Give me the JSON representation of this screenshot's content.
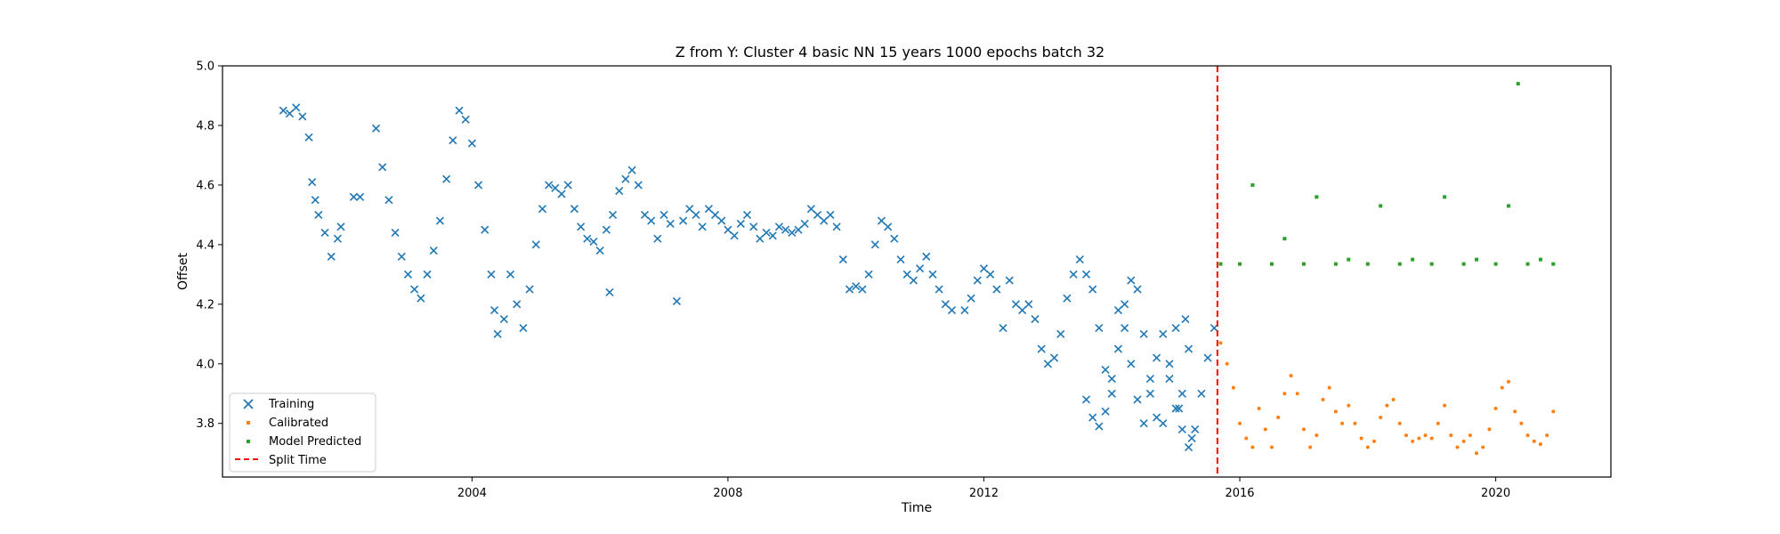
{
  "chart_data": {
    "type": "scatter",
    "title": "Z from Y: Cluster 4 basic NN 15 years 1000 epochs batch 32",
    "xlabel": "Time",
    "ylabel": "Offset",
    "xlim": [
      2000.1,
      2021.8
    ],
    "ylim": [
      3.62,
      5.0
    ],
    "xticks": [
      2004,
      2008,
      2012,
      2016,
      2020
    ],
    "xtick_labels": [
      "2004",
      "2008",
      "2012",
      "2016",
      "2020"
    ],
    "yticks": [
      3.8,
      4.0,
      4.2,
      4.4,
      4.6,
      4.8,
      5.0
    ],
    "ytick_labels": [
      "3.8",
      "4.0",
      "4.2",
      "4.4",
      "4.6",
      "4.8",
      "5.0"
    ],
    "grid": false,
    "legend_position": "lower-left",
    "split_time": 2015.65,
    "series": [
      {
        "name": "Training",
        "color": "#1f77b4",
        "marker": "x",
        "points": [
          [
            2001.05,
            4.85
          ],
          [
            2001.15,
            4.84
          ],
          [
            2001.25,
            4.86
          ],
          [
            2001.35,
            4.83
          ],
          [
            2001.45,
            4.76
          ],
          [
            2001.5,
            4.61
          ],
          [
            2001.55,
            4.55
          ],
          [
            2001.6,
            4.5
          ],
          [
            2001.7,
            4.44
          ],
          [
            2001.8,
            4.36
          ],
          [
            2001.9,
            4.42
          ],
          [
            2001.95,
            4.46
          ],
          [
            2002.15,
            4.56
          ],
          [
            2002.25,
            4.56
          ],
          [
            2002.5,
            4.79
          ],
          [
            2002.6,
            4.66
          ],
          [
            2002.7,
            4.55
          ],
          [
            2002.8,
            4.44
          ],
          [
            2002.9,
            4.36
          ],
          [
            2003.0,
            4.3
          ],
          [
            2003.1,
            4.25
          ],
          [
            2003.2,
            4.22
          ],
          [
            2003.3,
            4.3
          ],
          [
            2003.4,
            4.38
          ],
          [
            2003.5,
            4.48
          ],
          [
            2003.6,
            4.62
          ],
          [
            2003.7,
            4.75
          ],
          [
            2003.8,
            4.85
          ],
          [
            2003.9,
            4.82
          ],
          [
            2004.0,
            4.74
          ],
          [
            2004.1,
            4.6
          ],
          [
            2004.2,
            4.45
          ],
          [
            2004.3,
            4.3
          ],
          [
            2004.35,
            4.18
          ],
          [
            2004.4,
            4.1
          ],
          [
            2004.5,
            4.15
          ],
          [
            2004.6,
            4.3
          ],
          [
            2004.7,
            4.2
          ],
          [
            2004.8,
            4.12
          ],
          [
            2004.9,
            4.25
          ],
          [
            2005.0,
            4.4
          ],
          [
            2005.1,
            4.52
          ],
          [
            2005.2,
            4.6
          ],
          [
            2005.3,
            4.59
          ],
          [
            2005.4,
            4.57
          ],
          [
            2005.5,
            4.6
          ],
          [
            2005.6,
            4.52
          ],
          [
            2005.7,
            4.46
          ],
          [
            2005.8,
            4.42
          ],
          [
            2005.9,
            4.41
          ],
          [
            2006.0,
            4.38
          ],
          [
            2006.1,
            4.45
          ],
          [
            2006.15,
            4.24
          ],
          [
            2006.2,
            4.5
          ],
          [
            2006.3,
            4.58
          ],
          [
            2006.4,
            4.62
          ],
          [
            2006.5,
            4.65
          ],
          [
            2006.6,
            4.6
          ],
          [
            2006.7,
            4.5
          ],
          [
            2006.8,
            4.48
          ],
          [
            2006.9,
            4.42
          ],
          [
            2007.0,
            4.5
          ],
          [
            2007.1,
            4.47
          ],
          [
            2007.2,
            4.21
          ],
          [
            2007.3,
            4.48
          ],
          [
            2007.4,
            4.52
          ],
          [
            2007.5,
            4.5
          ],
          [
            2007.6,
            4.46
          ],
          [
            2007.7,
            4.52
          ],
          [
            2007.8,
            4.5
          ],
          [
            2007.9,
            4.48
          ],
          [
            2008.0,
            4.45
          ],
          [
            2008.1,
            4.43
          ],
          [
            2008.2,
            4.47
          ],
          [
            2008.3,
            4.5
          ],
          [
            2008.4,
            4.46
          ],
          [
            2008.5,
            4.42
          ],
          [
            2008.6,
            4.44
          ],
          [
            2008.7,
            4.43
          ],
          [
            2008.8,
            4.46
          ],
          [
            2008.9,
            4.45
          ],
          [
            2009.0,
            4.44
          ],
          [
            2009.1,
            4.45
          ],
          [
            2009.2,
            4.47
          ],
          [
            2009.3,
            4.52
          ],
          [
            2009.4,
            4.5
          ],
          [
            2009.5,
            4.48
          ],
          [
            2009.6,
            4.5
          ],
          [
            2009.7,
            4.46
          ],
          [
            2009.8,
            4.35
          ],
          [
            2009.9,
            4.25
          ],
          [
            2010.0,
            4.26
          ],
          [
            2010.1,
            4.25
          ],
          [
            2010.2,
            4.3
          ],
          [
            2010.3,
            4.4
          ],
          [
            2010.4,
            4.48
          ],
          [
            2010.5,
            4.46
          ],
          [
            2010.6,
            4.42
          ],
          [
            2010.7,
            4.35
          ],
          [
            2010.8,
            4.3
          ],
          [
            2010.9,
            4.28
          ],
          [
            2011.0,
            4.32
          ],
          [
            2011.1,
            4.36
          ],
          [
            2011.2,
            4.3
          ],
          [
            2011.3,
            4.25
          ],
          [
            2011.4,
            4.2
          ],
          [
            2011.5,
            4.18
          ],
          [
            2011.7,
            4.18
          ],
          [
            2011.8,
            4.22
          ],
          [
            2011.9,
            4.28
          ],
          [
            2012.0,
            4.32
          ],
          [
            2012.1,
            4.3
          ],
          [
            2012.2,
            4.25
          ],
          [
            2012.3,
            4.12
          ],
          [
            2012.4,
            4.28
          ],
          [
            2012.5,
            4.2
          ],
          [
            2012.6,
            4.18
          ],
          [
            2012.7,
            4.2
          ],
          [
            2012.8,
            4.15
          ],
          [
            2012.9,
            4.05
          ],
          [
            2013.0,
            4.0
          ],
          [
            2013.1,
            4.02
          ],
          [
            2013.2,
            4.1
          ],
          [
            2013.3,
            4.22
          ],
          [
            2013.4,
            4.3
          ],
          [
            2013.5,
            4.35
          ],
          [
            2013.6,
            4.3
          ],
          [
            2013.7,
            4.25
          ],
          [
            2013.8,
            4.12
          ],
          [
            2013.9,
            3.98
          ],
          [
            2014.0,
            3.9
          ],
          [
            2014.1,
            4.05
          ],
          [
            2014.2,
            4.2
          ],
          [
            2014.3,
            4.28
          ],
          [
            2014.4,
            4.25
          ],
          [
            2014.5,
            4.1
          ],
          [
            2014.6,
            3.95
          ],
          [
            2014.7,
            3.82
          ],
          [
            2014.8,
            3.8
          ],
          [
            2014.9,
            3.95
          ],
          [
            2015.0,
            4.12
          ],
          [
            2015.05,
            3.85
          ],
          [
            2015.1,
            3.9
          ],
          [
            2015.15,
            4.15
          ],
          [
            2015.2,
            4.05
          ],
          [
            2015.25,
            3.75
          ],
          [
            2013.6,
            3.88
          ],
          [
            2013.7,
            3.82
          ],
          [
            2013.8,
            3.79
          ],
          [
            2013.9,
            3.84
          ],
          [
            2014.0,
            3.95
          ],
          [
            2014.1,
            4.18
          ],
          [
            2014.2,
            4.12
          ],
          [
            2014.3,
            4.0
          ],
          [
            2014.4,
            3.88
          ],
          [
            2014.5,
            3.8
          ],
          [
            2014.6,
            3.9
          ],
          [
            2014.7,
            4.02
          ],
          [
            2014.8,
            4.1
          ],
          [
            2014.9,
            4.0
          ],
          [
            2015.0,
            3.85
          ],
          [
            2015.1,
            3.78
          ],
          [
            2015.2,
            3.72
          ],
          [
            2015.3,
            3.78
          ],
          [
            2015.4,
            3.9
          ],
          [
            2015.5,
            4.02
          ],
          [
            2015.6,
            4.12
          ]
        ]
      },
      {
        "name": "Calibrated",
        "color": "#ff7f0e",
        "marker": "point",
        "points": [
          [
            2015.7,
            4.07
          ],
          [
            2015.8,
            4.0
          ],
          [
            2015.9,
            3.92
          ],
          [
            2016.0,
            3.8
          ],
          [
            2016.1,
            3.75
          ],
          [
            2016.2,
            3.72
          ],
          [
            2016.3,
            3.85
          ],
          [
            2016.4,
            3.78
          ],
          [
            2016.5,
            3.72
          ],
          [
            2016.6,
            3.82
          ],
          [
            2016.7,
            3.9
          ],
          [
            2016.8,
            3.96
          ],
          [
            2016.9,
            3.9
          ],
          [
            2017.0,
            3.78
          ],
          [
            2017.1,
            3.72
          ],
          [
            2017.2,
            3.76
          ],
          [
            2017.3,
            3.88
          ],
          [
            2017.4,
            3.92
          ],
          [
            2017.5,
            3.84
          ],
          [
            2017.6,
            3.8
          ],
          [
            2017.7,
            3.86
          ],
          [
            2017.8,
            3.8
          ],
          [
            2017.9,
            3.75
          ],
          [
            2018.0,
            3.72
          ],
          [
            2018.1,
            3.74
          ],
          [
            2018.2,
            3.82
          ],
          [
            2018.3,
            3.86
          ],
          [
            2018.4,
            3.88
          ],
          [
            2018.5,
            3.8
          ],
          [
            2018.6,
            3.76
          ],
          [
            2018.7,
            3.74
          ],
          [
            2018.8,
            3.75
          ],
          [
            2018.9,
            3.76
          ],
          [
            2019.0,
            3.75
          ],
          [
            2019.1,
            3.8
          ],
          [
            2019.2,
            3.86
          ],
          [
            2019.3,
            3.76
          ],
          [
            2019.4,
            3.72
          ],
          [
            2019.5,
            3.74
          ],
          [
            2019.6,
            3.76
          ],
          [
            2019.7,
            3.7
          ],
          [
            2019.8,
            3.72
          ],
          [
            2019.9,
            3.78
          ],
          [
            2020.0,
            3.85
          ],
          [
            2020.1,
            3.92
          ],
          [
            2020.2,
            3.94
          ],
          [
            2020.3,
            3.84
          ],
          [
            2020.4,
            3.8
          ],
          [
            2020.5,
            3.76
          ],
          [
            2020.6,
            3.74
          ],
          [
            2020.7,
            3.73
          ],
          [
            2020.8,
            3.76
          ],
          [
            2020.9,
            3.84
          ]
        ]
      },
      {
        "name": "Model Predicted",
        "color": "#2ca02c",
        "marker": "square",
        "points": [
          [
            2015.7,
            4.335
          ],
          [
            2016.0,
            4.335
          ],
          [
            2016.2,
            4.6
          ],
          [
            2016.5,
            4.335
          ],
          [
            2016.7,
            4.42
          ],
          [
            2017.0,
            4.335
          ],
          [
            2017.2,
            4.56
          ],
          [
            2017.5,
            4.335
          ],
          [
            2017.7,
            4.35
          ],
          [
            2018.0,
            4.335
          ],
          [
            2018.2,
            4.53
          ],
          [
            2018.5,
            4.335
          ],
          [
            2018.7,
            4.35
          ],
          [
            2019.0,
            4.335
          ],
          [
            2019.2,
            4.56
          ],
          [
            2019.5,
            4.335
          ],
          [
            2019.7,
            4.35
          ],
          [
            2020.0,
            4.335
          ],
          [
            2020.2,
            4.53
          ],
          [
            2020.35,
            4.94
          ],
          [
            2020.5,
            4.335
          ],
          [
            2020.7,
            4.35
          ],
          [
            2020.9,
            4.335
          ]
        ]
      }
    ],
    "reference_lines": [
      {
        "name": "Split Time",
        "color": "#ff0000",
        "style": "dashed",
        "x": 2015.65
      }
    ]
  }
}
